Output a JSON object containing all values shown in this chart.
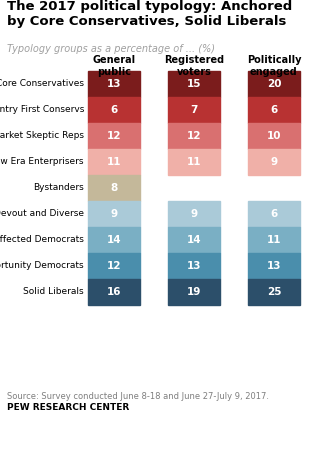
{
  "title": "The 2017 political typology: Anchored\nby Core Conservatives, Solid Liberals",
  "subtitle": "Typology groups as a percentage of ... (%)",
  "source": "Source: Survey conducted June 8-18 and June 27-July 9, 2017.",
  "brand": "PEW RESEARCH CENTER",
  "col_headers": [
    "General\npublic",
    "Registered\nvoters",
    "Politically\nengaged"
  ],
  "categories": [
    "Core Conservatives",
    "Country First Conservs",
    "Market Skeptic Reps",
    "New Era Enterprisers",
    "Bystanders",
    "Devout and Diverse",
    "Disaffected Democrats",
    "Opportunity Democrats",
    "Solid Liberals"
  ],
  "general_public": [
    13,
    6,
    12,
    11,
    8,
    9,
    14,
    12,
    16
  ],
  "registered_voters": [
    15,
    7,
    12,
    11,
    null,
    9,
    14,
    13,
    19
  ],
  "politically_engaged": [
    20,
    6,
    10,
    9,
    null,
    6,
    11,
    13,
    25
  ],
  "colors": {
    "Core Conservatives": "#7B1C1C",
    "Country First Conservs": "#B83232",
    "Market Skeptic Reps": "#D97070",
    "New Era Enterprisers": "#F0B0A8",
    "Bystanders": "#C4B89A",
    "Devout and Diverse": "#AACAD8",
    "Disaffected Democrats": "#7AAFC4",
    "Opportunity Democrats": "#4A8EAC",
    "Solid Liberals": "#2C4F6A"
  },
  "subtitle_color": "#A0A0A0",
  "title_fontsize": 9.5,
  "subtitle_fontsize": 7,
  "label_fontsize": 6.5,
  "header_fontsize": 7,
  "value_fontsize": 7.5,
  "source_fontsize": 6,
  "brand_fontsize": 6.5
}
